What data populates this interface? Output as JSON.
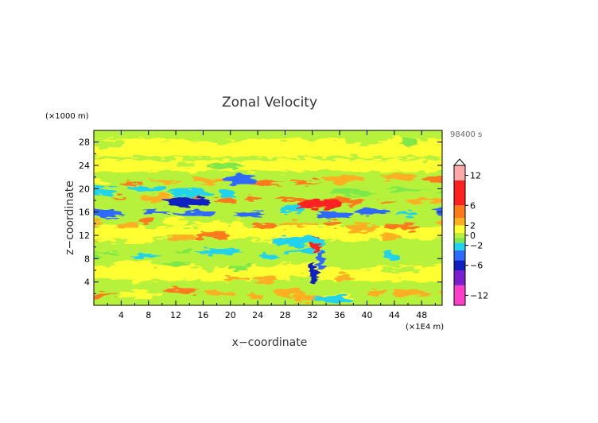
{
  "chart_data": {
    "type": "heatmap",
    "title": "Zonal Velocity",
    "xlabel": "x−coordinate",
    "ylabel": "z−coordinate",
    "x_unit": "(×1E4 m)",
    "y_unit": "(×1000 m)",
    "time_label": "98400 s",
    "xlim": [
      0,
      51
    ],
    "ylim": [
      0,
      30
    ],
    "x_ticks": [
      "4",
      "8",
      "12",
      "16",
      "20",
      "24",
      "28",
      "32",
      "36",
      "40",
      "44",
      "48"
    ],
    "y_ticks": [
      "4",
      "8",
      "12",
      "16",
      "20",
      "24",
      "28"
    ],
    "colorbar": {
      "range": [
        -14,
        14
      ],
      "tick_labels": [
        "12",
        "6",
        "2",
        "0",
        "−2",
        "−6",
        "−12"
      ],
      "tick_values": [
        12,
        6,
        2,
        0,
        -2,
        -6,
        -12
      ],
      "colors": {
        "magenta": "#ff3fc8",
        "purple": "#7a1fd0",
        "dark_blue": "#1020c0",
        "blue": "#2f6bff",
        "cyan": "#22d3ee",
        "green": "#7ee84a",
        "light_green": "#b6f23a",
        "yellow": "#ffff33",
        "orange": "#ffb020",
        "dark_orange": "#ff7a1a",
        "red": "#ff2020",
        "pink": "#ffaaaa"
      }
    },
    "bands": [
      {
        "z": 2,
        "value": 2.5
      },
      {
        "z": 4.5,
        "value": 1
      },
      {
        "z": 6.5,
        "value": 0
      },
      {
        "z": 9,
        "value": -1.5
      },
      {
        "z": 11.5,
        "value": 1.5
      },
      {
        "z": 14,
        "value": 3
      },
      {
        "z": 16,
        "value": -3
      },
      {
        "z": 18,
        "value": 4
      },
      {
        "z": 19.5,
        "value": -1
      },
      {
        "z": 21.5,
        "value": 3
      },
      {
        "z": 24,
        "value": 0.5
      },
      {
        "z": 28,
        "value": 0.5
      }
    ]
  }
}
